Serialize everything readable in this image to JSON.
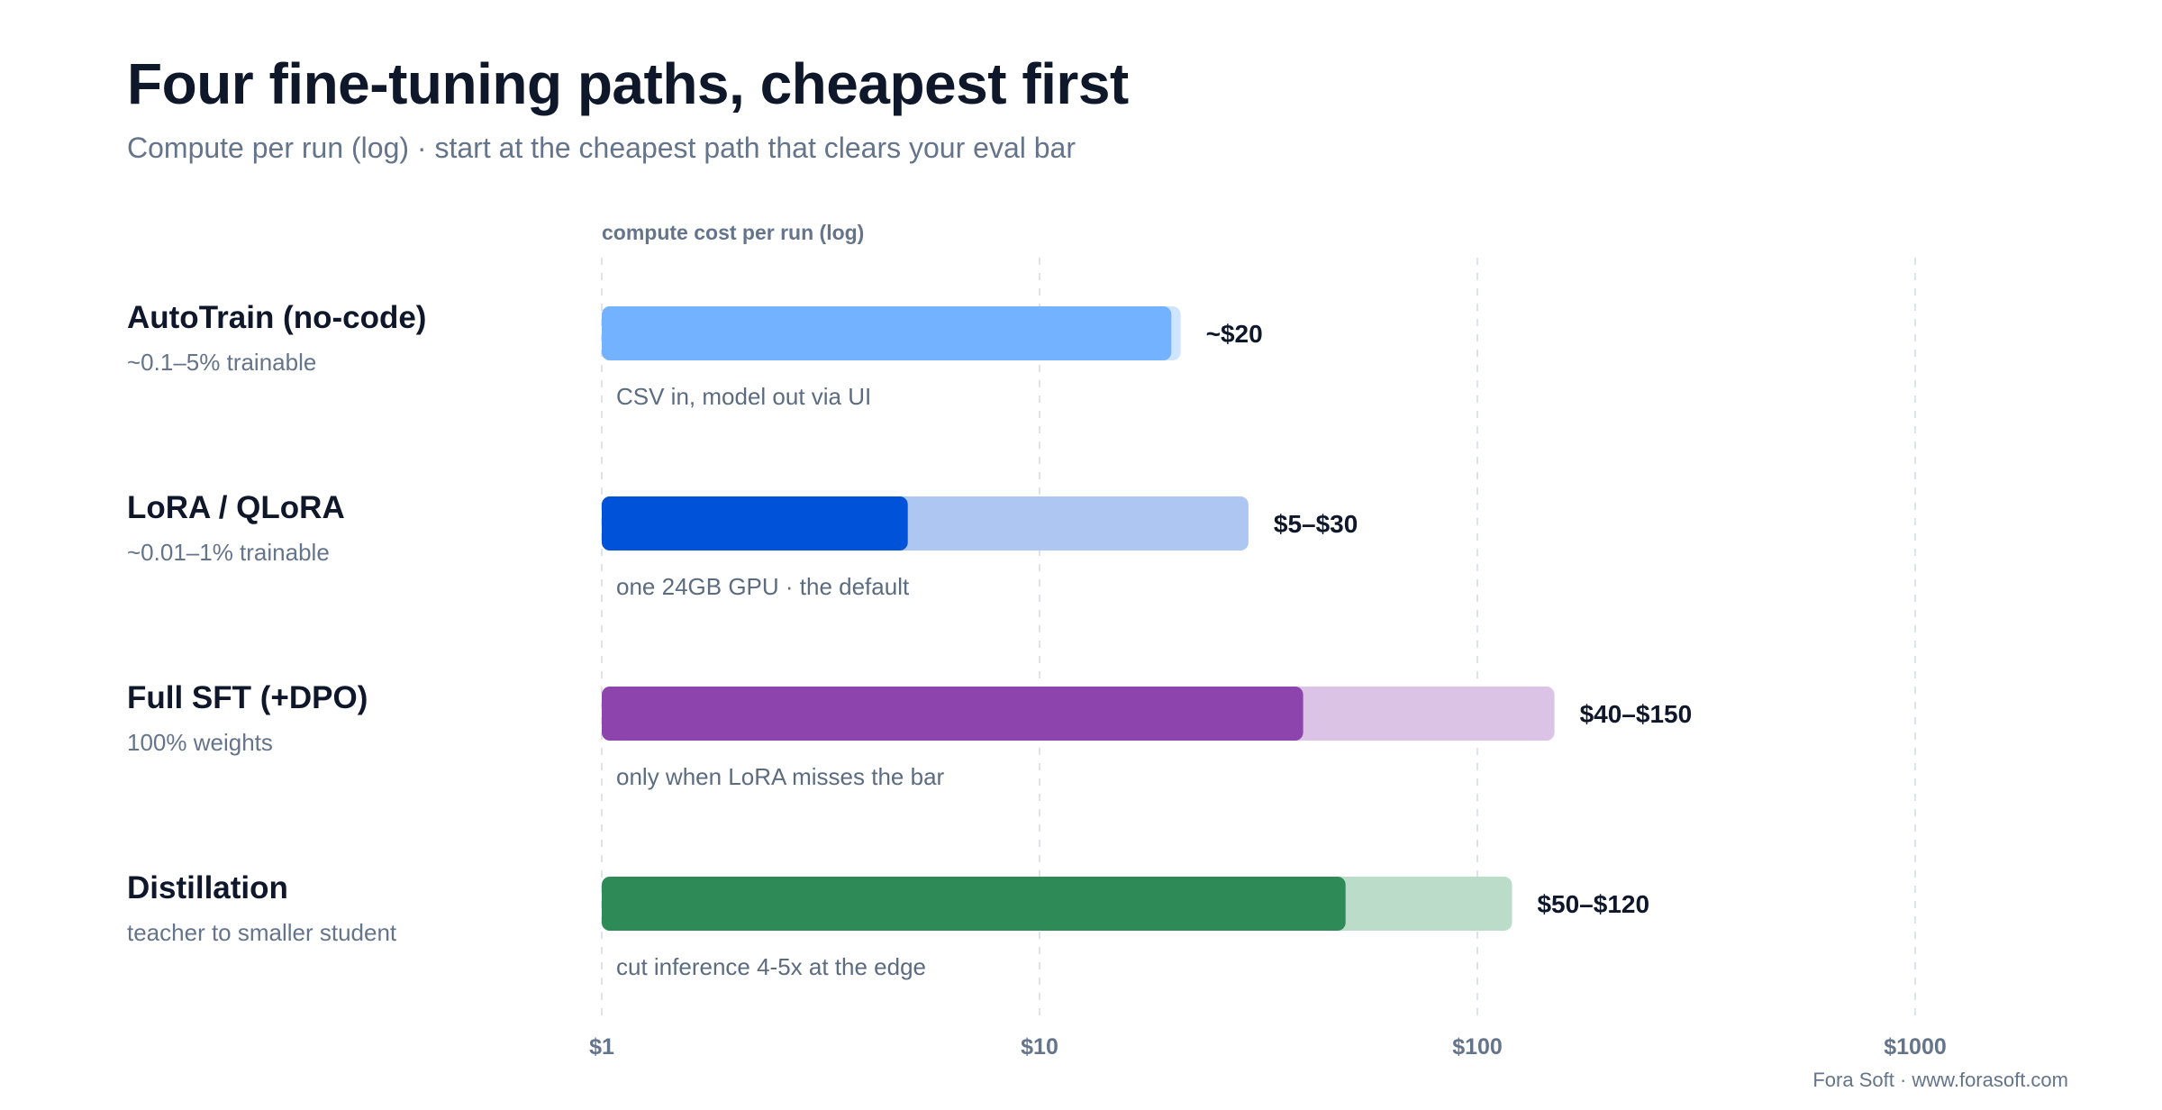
{
  "title": "Four fine-tuning paths, cheapest first",
  "subtitle": "Compute per run (log) · start at the cheapest path that clears your eval bar",
  "footer": "Fora Soft · www.forasoft.com",
  "chart_data": {
    "type": "bar",
    "orientation": "horizontal",
    "scale": "log",
    "xlabel": "compute cost per run (log)",
    "xlim": [
      1,
      1000
    ],
    "xticks": [
      {
        "value": 1,
        "label": "$1"
      },
      {
        "value": 10,
        "label": "$10"
      },
      {
        "value": 100,
        "label": "$100"
      },
      {
        "value": 1000,
        "label": "$1000"
      }
    ],
    "grid": true,
    "legend": "none",
    "rows": [
      {
        "name": "AutoTrain (no-code)",
        "detail": "~0.1–5% trainable",
        "low": 20,
        "high": 21,
        "value_label": "~$20",
        "note": "CSV in, model out via UI",
        "color": "#73b2ff",
        "light": "#cfe4ff"
      },
      {
        "name": "LoRA / QLoRA",
        "detail": "~0.01–1% trainable",
        "low": 5,
        "high": 30,
        "value_label": "$5–$30",
        "note": "one 24GB GPU · the default",
        "color": "#0052d9",
        "light": "#adc6f2"
      },
      {
        "name": "Full SFT (+DPO)",
        "detail": "100% weights",
        "low": 40,
        "high": 150,
        "value_label": "$40–$150",
        "note": "only when LoRA misses the bar",
        "color": "#8e44ad",
        "light": "#dbc3e5"
      },
      {
        "name": "Distillation",
        "detail": "teacher to smaller student",
        "low": 50,
        "high": 120,
        "value_label": "$50–$120",
        "note": "cut inference 4-5x at the edge",
        "color": "#2e8b57",
        "light": "#bcdcca"
      }
    ]
  }
}
